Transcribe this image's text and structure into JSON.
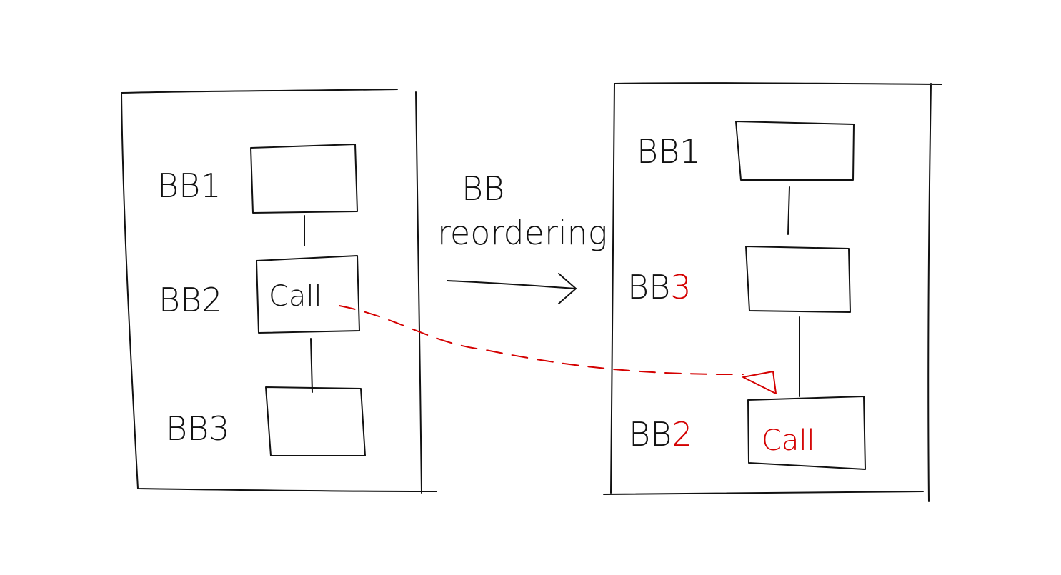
{
  "colors": {
    "ink": "#111111",
    "accent": "#d40000"
  },
  "before": {
    "blocks": [
      {
        "prefix": "BB",
        "suffix": "1",
        "suffix_changed": false,
        "content": ""
      },
      {
        "prefix": "BB",
        "suffix": "2",
        "suffix_changed": false,
        "content": "Call",
        "content_changed": false
      },
      {
        "prefix": "BB",
        "suffix": "3",
        "suffix_changed": false,
        "content": ""
      }
    ]
  },
  "transform": {
    "line1": "BB",
    "line2": "reordering"
  },
  "after": {
    "blocks": [
      {
        "prefix": "BB",
        "suffix": "1",
        "suffix_changed": false,
        "content": ""
      },
      {
        "prefix": "BB",
        "suffix": "3",
        "suffix_changed": true,
        "content": ""
      },
      {
        "prefix": "BB",
        "suffix": "2",
        "suffix_changed": true,
        "content": "Call",
        "content_changed": true
      }
    ]
  },
  "moved_edge": {
    "from": "before-BB2-call",
    "to": "after-BB2-call",
    "style": "dashed"
  }
}
